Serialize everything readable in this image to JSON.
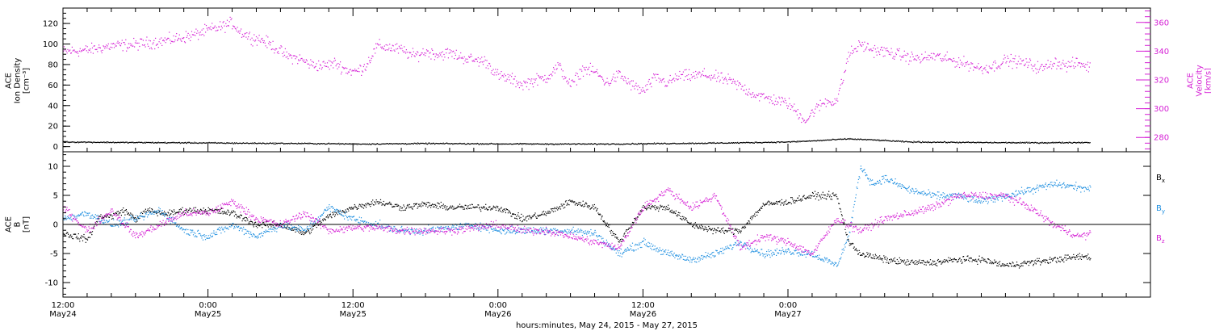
{
  "chart_data": [
    {
      "type": "scatter",
      "panel": "top",
      "ylabel_left": [
        "ACE",
        "Ion Density",
        "[cm⁻³]"
      ],
      "ylabel_right": [
        "ACE",
        "Velocity",
        "[km/s]"
      ],
      "y_left": {
        "lim": [
          -5,
          135
        ],
        "ticks": [
          0,
          20,
          40,
          60,
          80,
          100,
          120
        ]
      },
      "y_right": {
        "lim": [
          270,
          370
        ],
        "ticks": [
          280,
          300,
          320,
          340,
          360
        ]
      },
      "x_hours_lim": [
        0,
        90
      ],
      "series": [
        {
          "name": "Velocity",
          "axis": "right",
          "color": "#d51fd5",
          "points": [
            [
              0,
              340
            ],
            [
              2,
              341
            ],
            [
              4,
              344
            ],
            [
              6,
              345
            ],
            [
              8,
              347
            ],
            [
              10,
              350
            ],
            [
              11,
              352
            ],
            [
              12,
              355
            ],
            [
              13,
              357
            ],
            [
              14,
              360
            ],
            [
              14.6,
              354
            ],
            [
              15.5,
              350
            ],
            [
              16.5,
              348
            ],
            [
              17.5,
              343
            ],
            [
              18.5,
              337
            ],
            [
              19.5,
              335
            ],
            [
              20.5,
              331
            ],
            [
              21.5,
              330
            ],
            [
              22.5,
              332
            ],
            [
              23.5,
              327
            ],
            [
              24.2,
              326
            ],
            [
              25,
              330
            ],
            [
              26,
              344
            ],
            [
              27,
              343
            ],
            [
              28,
              341
            ],
            [
              29,
              337
            ],
            [
              30,
              340
            ],
            [
              31,
              338
            ],
            [
              32,
              339
            ],
            [
              33,
              336
            ],
            [
              34,
              334
            ],
            [
              35,
              333
            ],
            [
              36,
              323
            ],
            [
              37,
              321
            ],
            [
              38,
              317
            ],
            [
              39,
              320
            ],
            [
              40,
              322
            ],
            [
              41,
              330
            ],
            [
              42,
              316
            ],
            [
              43,
              328
            ],
            [
              44,
              326
            ],
            [
              45,
              318
            ],
            [
              46,
              324
            ],
            [
              47,
              317
            ],
            [
              48,
              312
            ],
            [
              49,
              322
            ],
            [
              50,
              318
            ],
            [
              51,
              323
            ],
            [
              52,
              323
            ],
            [
              53,
              324
            ],
            [
              54,
              322
            ],
            [
              55,
              320
            ],
            [
              56,
              316
            ],
            [
              57,
              311
            ],
            [
              58,
              308
            ],
            [
              59,
              306
            ],
            [
              60,
              304
            ],
            [
              60.9,
              296
            ],
            [
              61.5,
              292
            ],
            [
              62,
              298
            ],
            [
              63,
              305
            ],
            [
              64,
              306
            ],
            [
              64.5,
              320
            ],
            [
              65,
              338
            ],
            [
              66,
              345
            ],
            [
              67,
              341
            ],
            [
              68,
              340
            ],
            [
              69,
              338
            ],
            [
              70,
              336
            ],
            [
              71,
              335
            ],
            [
              72,
              337
            ],
            [
              73,
              335
            ],
            [
              74,
              333
            ],
            [
              75,
              331
            ],
            [
              76,
              328
            ],
            [
              77,
              330
            ],
            [
              78,
              334
            ],
            [
              79,
              333
            ],
            [
              80,
              331
            ],
            [
              81,
              328
            ],
            [
              82,
              333
            ],
            [
              83,
              330
            ],
            [
              84,
              332
            ],
            [
              85,
              329
            ]
          ]
        },
        {
          "name": "Density",
          "axis": "left",
          "color": "#000000",
          "points": [
            [
              0,
              5
            ],
            [
              5,
              4.5
            ],
            [
              10,
              4.2
            ],
            [
              15,
              3.8
            ],
            [
              20,
              3.5
            ],
            [
              25,
              3
            ],
            [
              30,
              3.5
            ],
            [
              35,
              3.2
            ],
            [
              40,
              3
            ],
            [
              45,
              3
            ],
            [
              50,
              3.5
            ],
            [
              55,
              4
            ],
            [
              60,
              5
            ],
            [
              62,
              6
            ],
            [
              65,
              8
            ],
            [
              67,
              7
            ],
            [
              70,
              5
            ],
            [
              75,
              4.5
            ],
            [
              80,
              4.2
            ],
            [
              85,
              4.5
            ]
          ]
        }
      ]
    },
    {
      "type": "scatter",
      "panel": "bottom",
      "ylabel_left": [
        "ACE",
        "B",
        "[nT]"
      ],
      "y_left": {
        "lim": [
          -12.5,
          12.5
        ],
        "ticks": [
          -10,
          -5,
          0,
          5,
          10
        ]
      },
      "zero_line": true,
      "x_hours_lim": [
        0,
        90
      ],
      "legend_placement": "right",
      "series": [
        {
          "name": "Bx",
          "color": "#000000",
          "points": [
            [
              0,
              -1.5
            ],
            [
              2,
              -2.5
            ],
            [
              3,
              1.5
            ],
            [
              4,
              1.5
            ],
            [
              5,
              2.5
            ],
            [
              6,
              1
            ],
            [
              7,
              2.5
            ],
            [
              8,
              2
            ],
            [
              9,
              2
            ],
            [
              10,
              2.5
            ],
            [
              12,
              2.5
            ],
            [
              14,
              2
            ],
            [
              16,
              0
            ],
            [
              18,
              0
            ],
            [
              20,
              -1.5
            ],
            [
              22,
              1.5
            ],
            [
              24,
              3
            ],
            [
              26,
              4
            ],
            [
              28,
              3
            ],
            [
              30,
              3.5
            ],
            [
              32,
              3
            ],
            [
              34,
              3
            ],
            [
              36,
              3
            ],
            [
              38,
              1
            ],
            [
              40,
              2
            ],
            [
              42,
              4
            ],
            [
              44,
              3
            ],
            [
              46,
              -3
            ],
            [
              48,
              3
            ],
            [
              50,
              3
            ],
            [
              52,
              0
            ],
            [
              54,
              -1
            ],
            [
              56,
              -1
            ],
            [
              58,
              3.5
            ],
            [
              60,
              4
            ],
            [
              62,
              5
            ],
            [
              64,
              5
            ],
            [
              65,
              -3
            ],
            [
              66,
              -5
            ],
            [
              68,
              -6
            ],
            [
              70,
              -6.5
            ],
            [
              72,
              -6.5
            ],
            [
              74,
              -6
            ],
            [
              76,
              -6
            ],
            [
              78,
              -7
            ],
            [
              80,
              -6.5
            ],
            [
              82,
              -6
            ],
            [
              84,
              -5.5
            ],
            [
              85,
              -5.5
            ]
          ]
        },
        {
          "name": "By",
          "color": "#1f8fe0",
          "points": [
            [
              0,
              1
            ],
            [
              2,
              2
            ],
            [
              4,
              0
            ],
            [
              6,
              1
            ],
            [
              8,
              2.5
            ],
            [
              10,
              -1
            ],
            [
              12,
              -2
            ],
            [
              14,
              0
            ],
            [
              16,
              -2
            ],
            [
              18,
              0
            ],
            [
              20,
              -1
            ],
            [
              22,
              3
            ],
            [
              24,
              1
            ],
            [
              26,
              0
            ],
            [
              28,
              -1
            ],
            [
              30,
              -1
            ],
            [
              32,
              -0.5
            ],
            [
              34,
              0
            ],
            [
              36,
              -1
            ],
            [
              38,
              -1
            ],
            [
              40,
              -1
            ],
            [
              42,
              -1
            ],
            [
              44,
              -1.5
            ],
            [
              46,
              -5
            ],
            [
              48,
              -3
            ],
            [
              50,
              -5
            ],
            [
              52,
              -6
            ],
            [
              54,
              -5
            ],
            [
              56,
              -3
            ],
            [
              58,
              -5
            ],
            [
              60,
              -4.5
            ],
            [
              62,
              -5
            ],
            [
              64,
              -7
            ],
            [
              65,
              -2
            ],
            [
              66,
              10
            ],
            [
              67,
              7
            ],
            [
              68,
              8
            ],
            [
              70,
              6
            ],
            [
              72,
              5
            ],
            [
              74,
              5
            ],
            [
              76,
              4
            ],
            [
              78,
              5
            ],
            [
              80,
              6
            ],
            [
              82,
              7
            ],
            [
              84,
              6.5
            ],
            [
              85,
              6
            ]
          ]
        },
        {
          "name": "Bz",
          "color": "#d51fd5",
          "points": [
            [
              0,
              3
            ],
            [
              2,
              -1
            ],
            [
              4,
              2.5
            ],
            [
              6,
              -2
            ],
            [
              8,
              0
            ],
            [
              10,
              2
            ],
            [
              12,
              2
            ],
            [
              14,
              4
            ],
            [
              16,
              1
            ],
            [
              18,
              0
            ],
            [
              20,
              2
            ],
            [
              22,
              -1
            ],
            [
              24,
              -0.5
            ],
            [
              26,
              -0.5
            ],
            [
              28,
              -1
            ],
            [
              30,
              -1
            ],
            [
              32,
              -1
            ],
            [
              34,
              -0.5
            ],
            [
              36,
              0
            ],
            [
              38,
              -1
            ],
            [
              40,
              -1
            ],
            [
              42,
              -2
            ],
            [
              44,
              -3
            ],
            [
              46,
              -4
            ],
            [
              48,
              3
            ],
            [
              50,
              6
            ],
            [
              52,
              3
            ],
            [
              54,
              5
            ],
            [
              56,
              -4
            ],
            [
              58,
              -2
            ],
            [
              60,
              -3
            ],
            [
              62,
              -5
            ],
            [
              64,
              1
            ],
            [
              65,
              0
            ],
            [
              66,
              -1
            ],
            [
              68,
              1
            ],
            [
              70,
              2
            ],
            [
              72,
              3
            ],
            [
              74,
              5
            ],
            [
              76,
              5
            ],
            [
              78,
              5
            ],
            [
              80,
              3
            ],
            [
              82,
              0
            ],
            [
              84,
              -2
            ],
            [
              85,
              -1.5
            ]
          ]
        }
      ]
    }
  ],
  "legend": {
    "bx": "B",
    "bx_sub": "x",
    "by": "B",
    "by_sub": "y",
    "bz": "B",
    "bz_sub": "z"
  },
  "x_axis": {
    "title": "hours:minutes, May 24, 2015 - May 27, 2015",
    "ticks": [
      {
        "h": 0,
        "time": "12:00",
        "date": "May24"
      },
      {
        "h": 12,
        "time": "0:00",
        "date": "May25"
      },
      {
        "h": 24,
        "time": "12:00",
        "date": "May25"
      },
      {
        "h": 36,
        "time": "0:00",
        "date": "May26"
      },
      {
        "h": 48,
        "time": "12:00",
        "date": "May26"
      },
      {
        "h": 60,
        "time": "0:00",
        "date": "May27"
      }
    ]
  }
}
